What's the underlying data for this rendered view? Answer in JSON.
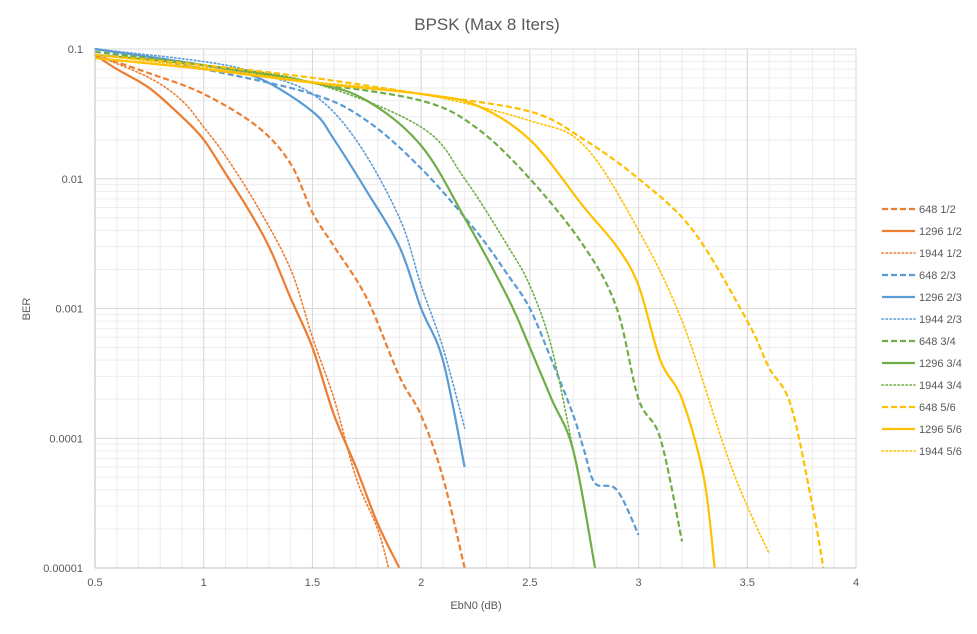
{
  "chart_data": {
    "type": "line",
    "title": "BPSK (Max 8 Iters)",
    "xlabel": "EbN0 (dB)",
    "ylabel": "BER",
    "xlim": [
      0.5,
      4
    ],
    "ylim": [
      1e-05,
      0.1
    ],
    "y_scale": "log",
    "x_ticks": [
      "0.5",
      "1",
      "1.5",
      "2",
      "2.5",
      "3",
      "3.5",
      "4"
    ],
    "y_ticks": [
      "0.1",
      "0.01",
      "0.001",
      "0.0001",
      "0.00001"
    ],
    "grid": true,
    "legend_position": "right",
    "series": [
      {
        "name": "648 1/2",
        "color": "#ED7D31",
        "dash": "dashed",
        "x": [
          0.5,
          0.75,
          1.0,
          1.25,
          1.4,
          1.5,
          1.6,
          1.75,
          1.9,
          2.0,
          2.1,
          2.2
        ],
        "y": [
          0.09,
          0.065,
          0.045,
          0.025,
          0.013,
          0.0055,
          0.003,
          0.0012,
          0.0003,
          0.00015,
          5e-05,
          1e-05
        ]
      },
      {
        "name": "1296 1/2",
        "color": "#ED7D31",
        "dash": "solid",
        "x": [
          0.5,
          0.6,
          0.75,
          0.9,
          1.0,
          1.1,
          1.2,
          1.3,
          1.4,
          1.5,
          1.6,
          1.7,
          1.8,
          1.9
        ],
        "y": [
          0.09,
          0.07,
          0.05,
          0.03,
          0.02,
          0.011,
          0.006,
          0.003,
          0.0012,
          0.0005,
          0.00015,
          6e-05,
          2.2e-05,
          1e-05
        ]
      },
      {
        "name": "1944 1/2",
        "color": "#ED7D31",
        "dash": "dotted",
        "x": [
          0.5,
          0.75,
          0.9,
          1.0,
          1.1,
          1.25,
          1.4,
          1.5,
          1.6,
          1.7,
          1.8,
          1.85
        ],
        "y": [
          0.09,
          0.06,
          0.04,
          0.025,
          0.015,
          0.006,
          0.002,
          0.0006,
          0.0002,
          5e-05,
          2e-05,
          1e-05
        ]
      },
      {
        "name": "648 2/3",
        "color": "#5B9BD5",
        "dash": "dashed",
        "x": [
          0.5,
          1.0,
          1.5,
          1.75,
          2.0,
          2.25,
          2.4,
          2.5,
          2.6,
          2.7,
          2.75,
          2.8,
          2.9,
          3.0
        ],
        "y": [
          0.1,
          0.07,
          0.045,
          0.028,
          0.012,
          0.004,
          0.0018,
          0.001,
          0.0004,
          0.00015,
          8e-05,
          4.5e-05,
          4e-05,
          1.8e-05
        ]
      },
      {
        "name": "1296 2/3",
        "color": "#5B9BD5",
        "dash": "solid",
        "x": [
          0.5,
          1.0,
          1.25,
          1.5,
          1.6,
          1.75,
          1.9,
          2.0,
          2.1,
          2.2
        ],
        "y": [
          0.1,
          0.075,
          0.06,
          0.033,
          0.02,
          0.008,
          0.003,
          0.001,
          0.0004,
          6e-05
        ]
      },
      {
        "name": "1944 2/3",
        "color": "#5B9BD5",
        "dash": "dotted",
        "x": [
          0.5,
          1.0,
          1.25,
          1.5,
          1.7,
          1.9,
          2.0,
          2.1,
          2.2
        ],
        "y": [
          0.1,
          0.08,
          0.065,
          0.045,
          0.02,
          0.005,
          0.0015,
          0.0005,
          0.00012
        ]
      },
      {
        "name": "648 3/4",
        "color": "#70AD47",
        "dash": "dashed",
        "x": [
          0.5,
          1.0,
          1.5,
          2.0,
          2.25,
          2.5,
          2.75,
          2.9,
          3.0,
          3.1,
          3.2
        ],
        "y": [
          0.095,
          0.075,
          0.055,
          0.04,
          0.025,
          0.01,
          0.003,
          0.001,
          0.0002,
          0.0001,
          1.6e-05
        ]
      },
      {
        "name": "1296 3/4",
        "color": "#70AD47",
        "dash": "solid",
        "x": [
          0.5,
          1.0,
          1.5,
          1.75,
          2.0,
          2.2,
          2.4,
          2.5,
          2.6,
          2.7,
          2.8
        ],
        "y": [
          0.09,
          0.075,
          0.055,
          0.04,
          0.018,
          0.005,
          0.0012,
          0.0005,
          0.0002,
          8e-05,
          1e-05
        ]
      },
      {
        "name": "1944 3/4",
        "color": "#70AD47",
        "dash": "dotted",
        "x": [
          0.5,
          1.0,
          1.5,
          2.0,
          2.2,
          2.4,
          2.5,
          2.6,
          2.7
        ],
        "y": [
          0.09,
          0.075,
          0.055,
          0.025,
          0.01,
          0.003,
          0.0015,
          0.0005,
          8e-05
        ]
      },
      {
        "name": "648 5/6",
        "color": "#FFC000",
        "dash": "dashed",
        "x": [
          0.5,
          1.0,
          1.5,
          2.0,
          2.5,
          2.75,
          3.0,
          3.25,
          3.5,
          3.6,
          3.7,
          3.8,
          3.85
        ],
        "y": [
          0.09,
          0.075,
          0.06,
          0.045,
          0.033,
          0.02,
          0.01,
          0.004,
          0.0008,
          0.00035,
          0.00018,
          3e-05,
          1e-05
        ]
      },
      {
        "name": "1296 5/6",
        "color": "#FFC000",
        "dash": "solid",
        "x": [
          0.5,
          1.0,
          1.5,
          2.0,
          2.25,
          2.5,
          2.75,
          2.9,
          3.0,
          3.1,
          3.2,
          3.3,
          3.35
        ],
        "y": [
          0.085,
          0.07,
          0.055,
          0.045,
          0.037,
          0.02,
          0.006,
          0.003,
          0.0015,
          0.0004,
          0.0002,
          5e-05,
          1e-05
        ]
      },
      {
        "name": "1944 5/6",
        "color": "#FFC000",
        "dash": "dotted",
        "x": [
          0.5,
          1.0,
          1.5,
          2.0,
          2.5,
          2.75,
          3.0,
          3.2,
          3.4,
          3.5,
          3.6
        ],
        "y": [
          0.09,
          0.072,
          0.056,
          0.045,
          0.028,
          0.018,
          0.004,
          0.0008,
          8e-05,
          3e-05,
          1.3e-05
        ]
      }
    ]
  }
}
